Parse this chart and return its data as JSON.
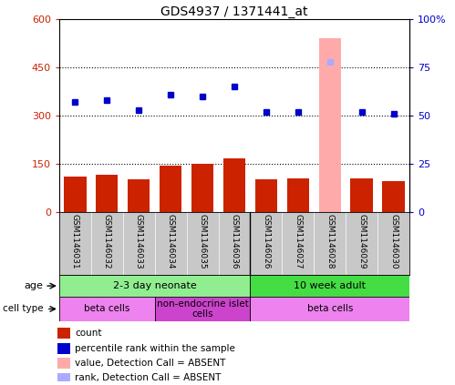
{
  "title": "GDS4937 / 1371441_at",
  "samples": [
    "GSM1146031",
    "GSM1146032",
    "GSM1146033",
    "GSM1146034",
    "GSM1146035",
    "GSM1146036",
    "GSM1146026",
    "GSM1146027",
    "GSM1146028",
    "GSM1146029",
    "GSM1146030"
  ],
  "counts": [
    110,
    115,
    100,
    145,
    148,
    165,
    100,
    105,
    0,
    105,
    95
  ],
  "percentile_ranks": [
    57,
    58,
    53,
    61,
    60,
    65,
    52,
    52,
    0,
    52,
    51
  ],
  "absent_bar_idx": 8,
  "absent_bar_value": 540,
  "absent_rank_value": 78,
  "ylim_left": [
    0,
    600
  ],
  "ylim_right": [
    0,
    100
  ],
  "yticks_left": [
    0,
    150,
    300,
    450,
    600
  ],
  "yticks_right": [
    0,
    25,
    50,
    75,
    100
  ],
  "ytick_labels_left": [
    "0",
    "150",
    "300",
    "450",
    "600"
  ],
  "ytick_labels_right": [
    "0",
    "25",
    "50",
    "75",
    "100%"
  ],
  "bar_color": "#cc2200",
  "dot_color": "#0000cc",
  "absent_bar_color": "#ffaaaa",
  "absent_dot_color": "#aaaaff",
  "age_groups": [
    {
      "label": "2-3 day neonate",
      "start": 0,
      "end": 6,
      "color": "#90ee90"
    },
    {
      "label": "10 week adult",
      "start": 6,
      "end": 11,
      "color": "#44dd44"
    }
  ],
  "cell_type_groups": [
    {
      "label": "beta cells",
      "start": 0,
      "end": 3,
      "color": "#ee82ee"
    },
    {
      "label": "non-endocrine islet\ncells",
      "start": 3,
      "end": 6,
      "color": "#cc44cc"
    },
    {
      "label": "beta cells",
      "start": 6,
      "end": 11,
      "color": "#ee82ee"
    }
  ],
  "legend_items": [
    {
      "color": "#cc2200",
      "label": "count"
    },
    {
      "color": "#0000cc",
      "label": "percentile rank within the sample"
    },
    {
      "color": "#ffaaaa",
      "label": "value, Detection Call = ABSENT"
    },
    {
      "color": "#aaaaff",
      "label": "rank, Detection Call = ABSENT"
    }
  ],
  "grid_dotted_yticks": [
    150,
    300,
    450
  ],
  "background_color": "#ffffff",
  "plot_bg": "#ffffff",
  "label_bg": "#c8c8c8"
}
